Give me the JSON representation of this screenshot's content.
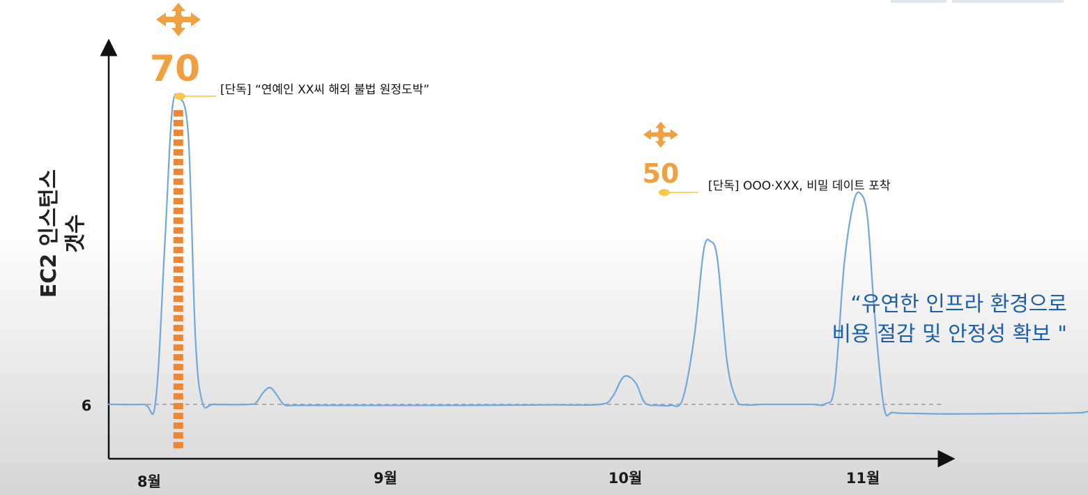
{
  "chart_data": {
    "type": "line",
    "ylabel_lines": [
      "EC2 인스턴스",
      "갯수"
    ],
    "x_ticks": [
      "8월",
      "9월",
      "10월",
      "11월"
    ],
    "y_ticks": [
      "6"
    ],
    "baseline_value": 6,
    "series": [
      {
        "color": "#6fa8dc",
        "points": [
          {
            "x": 0.0,
            "y": 6
          },
          {
            "x": 0.15,
            "y": 6
          },
          {
            "x": 0.2,
            "y": 6.6
          },
          {
            "x": 0.24,
            "y": 40
          },
          {
            "x": 0.27,
            "y": 67
          },
          {
            "x": 0.3,
            "y": 70
          },
          {
            "x": 0.34,
            "y": 62
          },
          {
            "x": 0.37,
            "y": 20
          },
          {
            "x": 0.4,
            "y": 6.4
          },
          {
            "x": 0.45,
            "y": 6
          },
          {
            "x": 0.6,
            "y": 6
          },
          {
            "x": 0.63,
            "y": 6.4
          },
          {
            "x": 0.66,
            "y": 8.5
          },
          {
            "x": 0.69,
            "y": 9.5
          },
          {
            "x": 0.72,
            "y": 7.8
          },
          {
            "x": 0.75,
            "y": 5.9
          },
          {
            "x": 0.8,
            "y": 5.8
          },
          {
            "x": 1.0,
            "y": 5.8
          },
          {
            "x": 1.5,
            "y": 5.8
          },
          {
            "x": 1.9,
            "y": 5.9
          },
          {
            "x": 2.1,
            "y": 6
          },
          {
            "x": 2.15,
            "y": 7.5
          },
          {
            "x": 2.2,
            "y": 11.8
          },
          {
            "x": 2.25,
            "y": 10.5
          },
          {
            "x": 2.29,
            "y": 6.3
          },
          {
            "x": 2.35,
            "y": 5.8
          },
          {
            "x": 2.4,
            "y": 5.8
          },
          {
            "x": 2.45,
            "y": 7
          },
          {
            "x": 2.5,
            "y": 20
          },
          {
            "x": 2.54,
            "y": 38
          },
          {
            "x": 2.57,
            "y": 40
          },
          {
            "x": 2.6,
            "y": 36
          },
          {
            "x": 2.64,
            "y": 15
          },
          {
            "x": 2.68,
            "y": 7
          },
          {
            "x": 2.72,
            "y": 5.9
          },
          {
            "x": 2.8,
            "y": 6
          },
          {
            "x": 3.0,
            "y": 6
          },
          {
            "x": 3.06,
            "y": 6.1
          },
          {
            "x": 3.1,
            "y": 10
          },
          {
            "x": 3.14,
            "y": 35
          },
          {
            "x": 3.18,
            "y": 48
          },
          {
            "x": 3.21,
            "y": 50
          },
          {
            "x": 3.24,
            "y": 45
          },
          {
            "x": 3.27,
            "y": 25
          },
          {
            "x": 3.31,
            "y": 5.5
          },
          {
            "x": 3.35,
            "y": 4.3
          },
          {
            "x": 3.45,
            "y": 4.1
          },
          {
            "x": 3.6,
            "y": 4.0
          },
          {
            "x": 3.9,
            "y": 4.1
          },
          {
            "x": 4.1,
            "y": 4.2
          },
          {
            "x": 4.18,
            "y": 4.5
          },
          {
            "x": 4.23,
            "y": 6.1
          },
          {
            "x": 4.27,
            "y": 6.5
          },
          {
            "x": 4.31,
            "y": 5
          },
          {
            "x": 4.35,
            "y": 3.8
          },
          {
            "x": 4.42,
            "y": 4.1
          },
          {
            "x": 4.49,
            "y": 4.1
          }
        ]
      }
    ],
    "annotations": [
      {
        "peak_value": "70",
        "x": 0.3,
        "y": 70,
        "text": "[단독] “연예인 XX씨 해외 불법 원정도박”"
      },
      {
        "peak_value": "50",
        "x": 3.21,
        "y": 50,
        "text": "[단독] OOO·XXX, 비밀 데이트 포착"
      }
    ],
    "quote_lines": [
      "“유연한 인프라 환경으로",
      "비용 절감 및 안정성 확보 \""
    ],
    "colors": {
      "line": "#6fa8dc",
      "accent": "#f0a040",
      "dots": "#e8893a",
      "marker": "#f7c948",
      "quote": "#1d5fa8"
    },
    "icons": [
      "aws-autoscaling-icon",
      "aws-instance-stack-icon"
    ]
  }
}
